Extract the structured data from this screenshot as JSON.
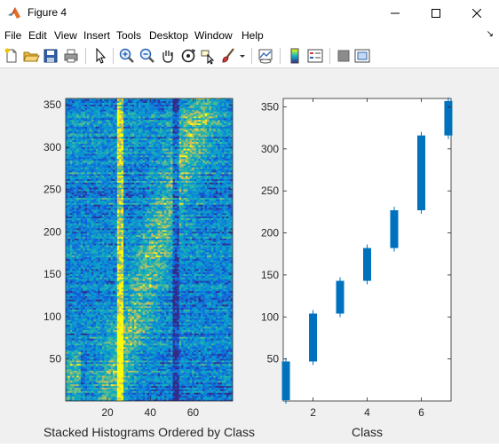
{
  "window": {
    "title": "Figure 4",
    "controls": [
      "minimize",
      "maximize",
      "close"
    ]
  },
  "menu": {
    "items": [
      "File",
      "Edit",
      "View",
      "Insert",
      "Tools",
      "Desktop",
      "Window",
      "Help"
    ],
    "overflow_glyph": "↘"
  },
  "toolbar": {
    "icons": [
      "new-figure-icon",
      "open-file-icon",
      "save-icon",
      "print-icon",
      "pointer-arrow-icon",
      "zoom-in-icon",
      "zoom-out-icon",
      "pan-hand-icon",
      "rotate-3d-icon",
      "data-cursor-icon",
      "brush-icon",
      "brush-dropdown-icon",
      "link-plot-icon",
      "colorbar-icon",
      "legend-icon",
      "hide-plot-tools-icon",
      "show-plot-tools-icon"
    ]
  },
  "colors": {
    "bar": "#0072bd",
    "parula_low": "#352a87",
    "parula_high": "#f9fb0e"
  },
  "chart_data": [
    {
      "type": "heatmap",
      "title": "",
      "xlabel": "Stacked Histograms Ordered by Class",
      "ylabel": "",
      "xlim": [
        0.5,
        78.5
      ],
      "ylim": [
        0.5,
        357.5
      ],
      "xticks": [
        20,
        40,
        60
      ],
      "yticks": [
        50,
        100,
        150,
        200,
        250,
        300,
        350
      ],
      "colormap": "parula",
      "grid": false
    },
    {
      "type": "bar",
      "title": "",
      "xlabel": "Class",
      "ylabel": "",
      "xlim": [
        0.9,
        7.1
      ],
      "ylim": [
        0,
        360
      ],
      "xticks": [
        2,
        4,
        6
      ],
      "yticks": [
        50,
        100,
        150,
        200,
        250,
        300,
        350
      ],
      "grid": false,
      "categories": [
        1,
        2,
        3,
        4,
        5,
        6,
        7
      ],
      "ranges": [
        {
          "class": 1,
          "low": 1,
          "high": 47
        },
        {
          "class": 2,
          "low": 47,
          "high": 104
        },
        {
          "class": 3,
          "low": 104,
          "high": 143
        },
        {
          "class": 4,
          "low": 143,
          "high": 182
        },
        {
          "class": 5,
          "low": 182,
          "high": 227
        },
        {
          "class": 6,
          "low": 227,
          "high": 316
        },
        {
          "class": 7,
          "low": 316,
          "high": 357
        }
      ]
    }
  ]
}
